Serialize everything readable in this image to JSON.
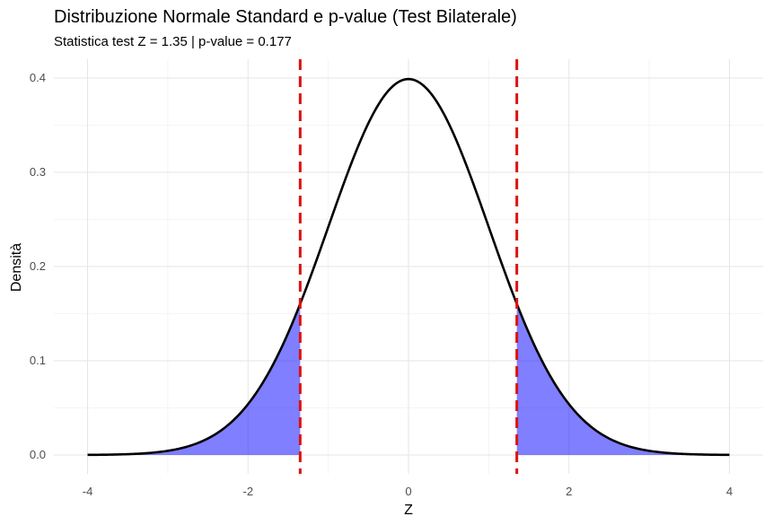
{
  "chart_data": {
    "type": "area",
    "title": "Distribuzione Normale Standard e p-value (Test Bilaterale)",
    "subtitle": "Statistica test Z = 1.35 | p-value = 0.177",
    "xlabel": "Z",
    "ylabel": "Densità",
    "xlim": [
      -4,
      4
    ],
    "ylim": [
      0,
      0.4
    ],
    "x_ticks": [
      -4,
      -2,
      0,
      2,
      4
    ],
    "x_tick_labels": [
      "-4",
      "-2",
      "0",
      "2",
      "4"
    ],
    "y_ticks": [
      0.0,
      0.1,
      0.2,
      0.3,
      0.4
    ],
    "y_tick_labels": [
      "0.0",
      "0.1",
      "0.2",
      "0.3",
      "0.4"
    ],
    "grid": true,
    "series": [
      {
        "kind": "density-curve",
        "x": [
          -4,
          -3.5,
          -3,
          -2.5,
          -2,
          -1.5,
          -1,
          -0.5,
          0,
          0.5,
          1,
          1.5,
          2,
          2.5,
          3,
          3.5,
          4
        ],
        "y": [
          0.0001,
          0.0009,
          0.0044,
          0.0175,
          0.054,
          0.1295,
          0.242,
          0.3521,
          0.3989,
          0.3521,
          0.242,
          0.1295,
          0.054,
          0.0175,
          0.0044,
          0.0009,
          0.0001
        ],
        "color": "#000000"
      }
    ],
    "shaded_regions": [
      {
        "from": -4,
        "to": -1.35,
        "color": "#0000ff",
        "opacity": 0.5
      },
      {
        "from": 1.35,
        "to": 4,
        "color": "#0000ff",
        "opacity": 0.5
      }
    ],
    "critical_lines": [
      {
        "x": -1.35,
        "color": "#dd1111",
        "style": "dashed"
      },
      {
        "x": 1.35,
        "color": "#dd1111",
        "style": "dashed"
      }
    ]
  }
}
